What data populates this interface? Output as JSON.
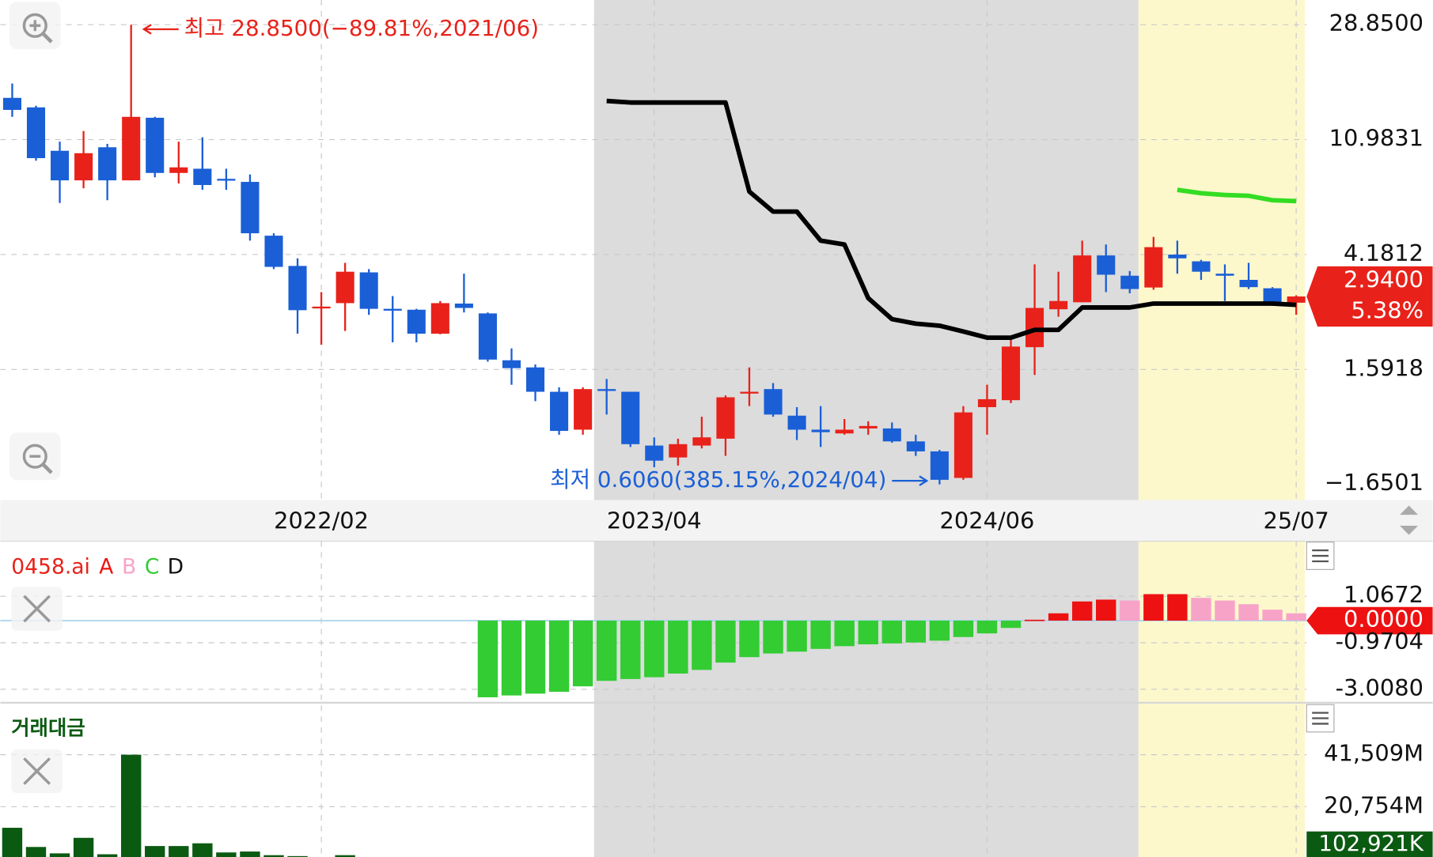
{
  "chart_data": [
    {
      "type": "candlestick",
      "log_scale": true,
      "up_color": "#e8221a",
      "down_color": "#1a5fd6",
      "categories": [
        null,
        null,
        null,
        null,
        null,
        null,
        null,
        null,
        null,
        null,
        null,
        null,
        null,
        "2022/02",
        null,
        null,
        null,
        null,
        null,
        null,
        null,
        null,
        null,
        null,
        null,
        null,
        null,
        "2023/04",
        null,
        null,
        null,
        null,
        null,
        null,
        null,
        null,
        null,
        null,
        null,
        null,
        null,
        "2024/06",
        null,
        null,
        null,
        null,
        null,
        null,
        null,
        null,
        null,
        null,
        null,
        null,
        "25/07"
      ],
      "open": [
        15.6,
        14.4,
        10.0,
        7.8,
        10.3,
        7.8,
        13.2,
        8.3,
        8.6,
        7.9,
        7.7,
        4.9,
        3.8,
        2.68,
        2.78,
        3.6,
        2.65,
        2.63,
        2.15,
        2.77,
        2.55,
        1.72,
        1.62,
        1.32,
        0.96,
        1.35,
        1.32,
        0.84,
        0.76,
        0.84,
        0.89,
        1.3,
        1.35,
        1.08,
        0.96,
        0.93,
        0.97,
        0.97,
        0.87,
        0.8,
        0.64,
        1.16,
        1.23,
        1.92,
        2.64,
        2.8,
        4.15,
        3.5,
        3.17,
        4.18,
        3.95,
        3.56,
        3.38,
        3.15,
        2.79
      ],
      "high": [
        17.6,
        14.6,
        10.8,
        11.8,
        10.6,
        28.85,
        13.3,
        10.8,
        11.2,
        8.6,
        8.2,
        5.0,
        4.05,
        3.05,
        3.9,
        3.7,
        2.95,
        2.65,
        2.83,
        3.56,
        2.57,
        1.9,
        1.66,
        1.37,
        1.37,
        1.47,
        1.32,
        0.9,
        0.89,
        1.07,
        1.28,
        1.62,
        1.42,
        1.16,
        1.17,
        1.05,
        1.03,
        1.02,
        0.92,
        0.81,
        1.17,
        1.4,
        2.04,
        3.85,
        3.62,
        4.7,
        4.55,
        3.64,
        4.85,
        4.7,
        4.0,
        3.85,
        3.9,
        3.18,
        2.97
      ],
      "low": [
        13.3,
        9.2,
        6.45,
        7.3,
        6.6,
        7.8,
        8.0,
        7.6,
        7.2,
        7.2,
        4.7,
        3.7,
        2.15,
        1.96,
        2.2,
        2.52,
        2.0,
        2.0,
        2.14,
        2.57,
        1.7,
        1.4,
        1.22,
        0.92,
        0.92,
        1.09,
        0.83,
        0.7,
        0.71,
        0.82,
        0.77,
        1.17,
        1.07,
        0.88,
        0.83,
        0.92,
        0.92,
        0.86,
        0.77,
        0.606,
        0.63,
        0.92,
        1.2,
        1.52,
        2.48,
        2.8,
        3.05,
        3.02,
        3.11,
        3.56,
        3.38,
        2.83,
        3.13,
        2.72,
        2.52
      ],
      "close": [
        14.1,
        9.4,
        7.8,
        9.8,
        7.8,
        13.3,
        8.3,
        8.7,
        7.5,
        7.8,
        5.0,
        3.77,
        2.62,
        2.7,
        3.62,
        2.65,
        2.63,
        2.15,
        2.78,
        2.67,
        1.73,
        1.61,
        1.32,
        0.95,
        1.35,
        1.33,
        0.85,
        0.74,
        0.85,
        0.9,
        1.26,
        1.32,
        1.09,
        0.96,
        0.94,
        0.96,
        0.99,
        0.87,
        0.8,
        0.63,
        1.11,
        1.24,
        1.93,
        2.67,
        2.83,
        4.15,
        3.53,
        3.13,
        4.45,
        4.05,
        3.62,
        3.5,
        3.18,
        2.78,
        2.94
      ],
      "overlays": [
        {
          "color": "#000000",
          "values": [
            null,
            null,
            null,
            null,
            null,
            null,
            null,
            null,
            null,
            null,
            null,
            null,
            null,
            null,
            null,
            null,
            null,
            null,
            null,
            null,
            null,
            null,
            null,
            null,
            null,
            15.2,
            15.0,
            15.0,
            15.0,
            15.0,
            15.0,
            7.1,
            6.0,
            6.0,
            4.7,
            4.55,
            2.9,
            2.43,
            2.34,
            2.3,
            2.19,
            2.08,
            2.08,
            2.22,
            2.22,
            2.68,
            2.68,
            2.68,
            2.77,
            2.77,
            2.77,
            2.77,
            2.77,
            2.77,
            2.74
          ]
        },
        {
          "color": "#33dd22",
          "values": [
            null,
            null,
            null,
            null,
            null,
            null,
            null,
            null,
            null,
            null,
            null,
            null,
            null,
            null,
            null,
            null,
            null,
            null,
            null,
            null,
            null,
            null,
            null,
            null,
            null,
            null,
            null,
            null,
            null,
            null,
            null,
            null,
            null,
            null,
            null,
            null,
            null,
            null,
            null,
            null,
            null,
            null,
            null,
            null,
            null,
            null,
            null,
            null,
            null,
            7.2,
            7.0,
            6.9,
            6.85,
            6.6,
            6.55
          ]
        }
      ],
      "ylim": [
        0.531,
        35.5
      ],
      "yticks": [
        {
          "value": 28.85,
          "label": "28.8500"
        },
        10.9831,
        4.1812,
        1.5918
      ],
      "bottom_axis_label": "−1.6501",
      "high_label": "최고 28.8500(−89.81%,2021/06)",
      "low_label": "최저 0.6060(385.15%,2024/04)",
      "last_price_label": "2.9400",
      "change_label": "5.38%",
      "grid": true
    },
    {
      "type": "bar",
      "title": "0458.ai",
      "title_color": "#e8221a",
      "series": [
        {
          "name": "A",
          "color": "#ee1111",
          "values": [
            null,
            null,
            null,
            null,
            null,
            null,
            null,
            null,
            null,
            null,
            null,
            null,
            null,
            null,
            null,
            null,
            null,
            null,
            null,
            null,
            null,
            null,
            null,
            null,
            null,
            null,
            null,
            null,
            null,
            null,
            null,
            null,
            null,
            null,
            null,
            null,
            null,
            null,
            null,
            null,
            null,
            null,
            null,
            0.04,
            0.32,
            0.84,
            0.92,
            null,
            1.16,
            1.16,
            null,
            null,
            null,
            null,
            null
          ]
        },
        {
          "name": "B",
          "color": "#f7a3c8",
          "values": [
            null,
            null,
            null,
            null,
            null,
            null,
            null,
            null,
            null,
            null,
            null,
            null,
            null,
            null,
            null,
            null,
            null,
            null,
            null,
            null,
            null,
            null,
            null,
            null,
            null,
            null,
            null,
            null,
            null,
            null,
            null,
            null,
            null,
            null,
            null,
            null,
            null,
            null,
            null,
            null,
            null,
            null,
            null,
            null,
            null,
            null,
            null,
            0.88,
            null,
            null,
            1.0,
            0.88,
            0.72,
            0.48,
            0.32
          ]
        },
        {
          "name": "C",
          "color": "#33cc33",
          "values": [
            null,
            null,
            null,
            null,
            null,
            null,
            null,
            null,
            null,
            null,
            null,
            null,
            null,
            null,
            null,
            null,
            null,
            null,
            null,
            null,
            -3.36,
            -3.28,
            -3.2,
            -3.12,
            -2.88,
            -2.64,
            -2.56,
            -2.48,
            -2.32,
            -2.16,
            -1.84,
            -1.6,
            -1.44,
            -1.36,
            -1.24,
            -1.12,
            -1.04,
            -1.0,
            -0.96,
            -0.88,
            -0.72,
            -0.56,
            -0.32,
            null,
            null,
            null,
            null,
            null,
            null,
            null,
            null,
            null,
            null,
            null,
            null
          ]
        },
        {
          "name": "D",
          "color": "#111111",
          "values": [
            null,
            null,
            null,
            null,
            null,
            null,
            null,
            null,
            null,
            null,
            null,
            null,
            null,
            null,
            null,
            null,
            null,
            null,
            null,
            null,
            null,
            null,
            null,
            null,
            null,
            null,
            null,
            null,
            null,
            null,
            null,
            null,
            null,
            null,
            null,
            null,
            null,
            null,
            null,
            null,
            null,
            null,
            null,
            null,
            null,
            null,
            null,
            null,
            null,
            null,
            null,
            null,
            null,
            null,
            null
          ]
        }
      ],
      "ylim": [
        -3.6,
        3.4
      ],
      "yticks": [
        1.0672,
        {
          "value": 0,
          "label": "0.0000"
        },
        -0.9704,
        {
          "value": -3.008,
          "label": "-3.0080"
        }
      ],
      "grid": true
    },
    {
      "type": "bar",
      "title": "거래대금",
      "color": "#0b5a12",
      "values": [
        12380,
        4730,
        2180,
        8370,
        1820,
        41509,
        5100,
        5100,
        6190,
        2550,
        2910,
        1460,
        1090,
        730,
        1460,
        730,
        300,
        300,
        300,
        300,
        300,
        300,
        300,
        300,
        300,
        300,
        300,
        300,
        300,
        300,
        300,
        300,
        300,
        300,
        300,
        300,
        300,
        300,
        300,
        300,
        300,
        300,
        300,
        300,
        300,
        300,
        300,
        300,
        300,
        300,
        300,
        300,
        300,
        300,
        102.921
      ],
      "ylim": [
        0,
        61500
      ],
      "yticks": [
        {
          "value": 41509,
          "label": "41,509M"
        },
        {
          "value": 20754,
          "label": "20,754M"
        }
      ],
      "last_label": "102,921K",
      "grid": true
    }
  ]
}
